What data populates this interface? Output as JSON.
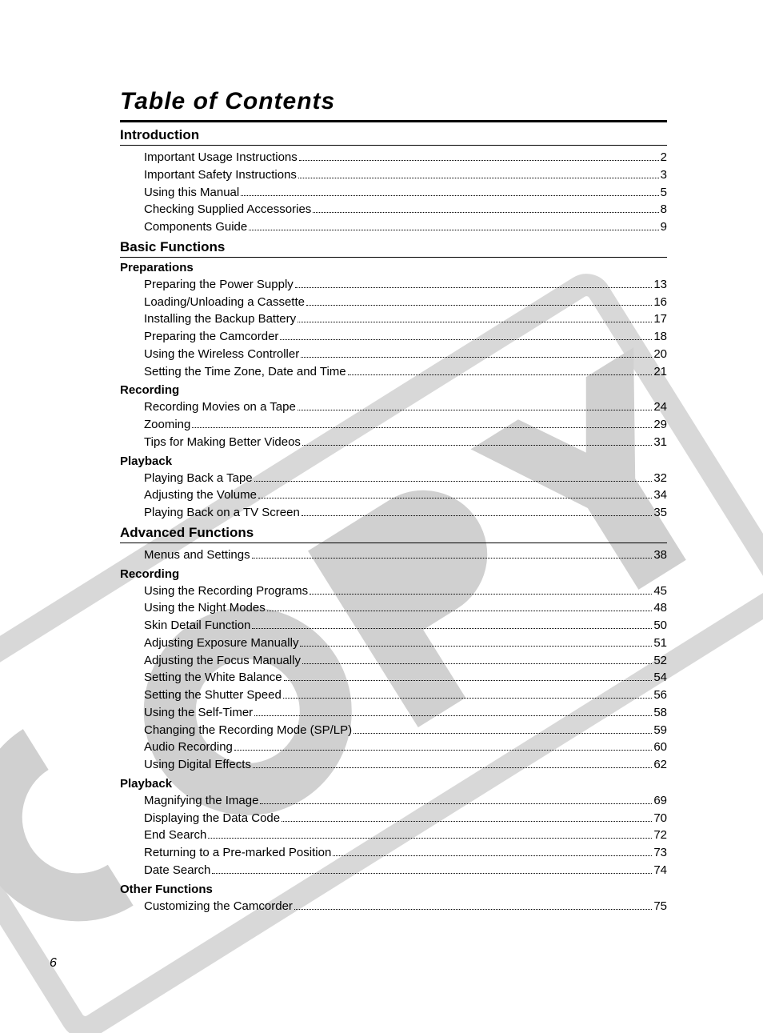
{
  "page": {
    "title": "Table of Contents",
    "number": "6"
  },
  "colors": {
    "text": "#000000",
    "rule": "#000000",
    "watermark_light": "#e6e6e6",
    "watermark_mid": "#cfcfcf",
    "watermark_dark": "#b8b8b8",
    "background": "#ffffff"
  },
  "typography": {
    "title_fontsize": 30,
    "section_fontsize": 17,
    "sub_fontsize": 15,
    "entry_fontsize": 15,
    "page_number_fontsize": 16
  },
  "sections": [
    {
      "heading": "Introduction",
      "groups": [
        {
          "sub": null,
          "entries": [
            {
              "label": "Important Usage Instructions",
              "page": "2"
            },
            {
              "label": "Important Safety Instructions",
              "page": "3"
            },
            {
              "label": "Using this Manual",
              "page": "5"
            },
            {
              "label": "Checking Supplied Accessories",
              "page": "8"
            },
            {
              "label": "Components Guide",
              "page": "9"
            }
          ]
        }
      ]
    },
    {
      "heading": "Basic Functions",
      "groups": [
        {
          "sub": "Preparations",
          "entries": [
            {
              "label": "Preparing the Power Supply",
              "page": "13"
            },
            {
              "label": "Loading/Unloading a Cassette",
              "page": "16"
            },
            {
              "label": "Installing the Backup Battery",
              "page": "17"
            },
            {
              "label": "Preparing the Camcorder",
              "page": "18"
            },
            {
              "label": "Using the Wireless Controller",
              "page": "20"
            },
            {
              "label": "Setting the Time Zone, Date and Time",
              "page": "21"
            }
          ]
        },
        {
          "sub": "Recording",
          "entries": [
            {
              "label": "Recording Movies on a Tape",
              "page": "24"
            },
            {
              "label": "Zooming",
              "page": "29"
            },
            {
              "label": "Tips for Making Better Videos",
              "page": "31"
            }
          ]
        },
        {
          "sub": "Playback",
          "entries": [
            {
              "label": "Playing Back a Tape",
              "page": "32"
            },
            {
              "label": "Adjusting the Volume",
              "page": "34"
            },
            {
              "label": "Playing Back on a TV Screen",
              "page": "35"
            }
          ]
        }
      ]
    },
    {
      "heading": "Advanced Functions",
      "groups": [
        {
          "sub": null,
          "entries": [
            {
              "label": "Menus and Settings",
              "page": "38"
            }
          ]
        },
        {
          "sub": "Recording",
          "entries": [
            {
              "label": "Using the Recording Programs",
              "page": "45"
            },
            {
              "label": "Using the Night Modes",
              "page": "48"
            },
            {
              "label": "Skin Detail Function",
              "page": "50"
            },
            {
              "label": "Adjusting Exposure Manually",
              "page": "51"
            },
            {
              "label": "Adjusting the Focus Manually",
              "page": "52"
            },
            {
              "label": "Setting the White Balance",
              "page": "54"
            },
            {
              "label": "Setting the Shutter Speed",
              "page": "56"
            },
            {
              "label": "Using the Self-Timer",
              "page": "58"
            },
            {
              "label": "Changing the Recording Mode (SP/LP)",
              "page": "59"
            },
            {
              "label": "Audio Recording",
              "page": "60"
            },
            {
              "label": "Using Digital Effects",
              "page": "62"
            }
          ]
        },
        {
          "sub": "Playback",
          "entries": [
            {
              "label": "Magnifying the Image",
              "page": "69"
            },
            {
              "label": "Displaying the Data Code",
              "page": "70"
            },
            {
              "label": "End Search",
              "page": "72"
            },
            {
              "label": "Returning to a Pre-marked Position",
              "page": "73"
            },
            {
              "label": "Date Search",
              "page": "74"
            }
          ]
        },
        {
          "sub": "Other Functions",
          "entries": [
            {
              "label": "Customizing the Camcorder",
              "page": "75"
            }
          ]
        }
      ]
    }
  ]
}
